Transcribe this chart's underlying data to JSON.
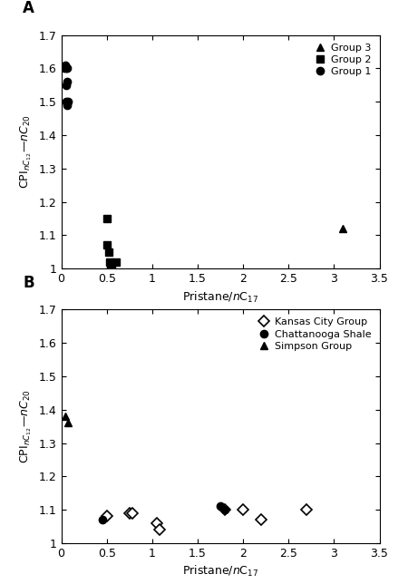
{
  "panel_A": {
    "label": "A",
    "group1": {
      "name": "Group 1",
      "marker": "o",
      "x": [
        0.03,
        0.04,
        0.05,
        0.06,
        0.05,
        0.06,
        0.07,
        0.05,
        0.06
      ],
      "y": [
        1.6,
        1.61,
        1.6,
        1.6,
        1.55,
        1.56,
        1.5,
        1.5,
        1.49
      ]
    },
    "group2": {
      "name": "Group 2",
      "marker": "s",
      "x": [
        0.5,
        0.5,
        0.52,
        0.53,
        0.54,
        0.55,
        0.6
      ],
      "y": [
        1.15,
        1.07,
        1.05,
        1.02,
        1.0,
        1.01,
        1.02
      ]
    },
    "group3": {
      "name": "Group 3",
      "marker": "^",
      "x": [
        3.1
      ],
      "y": [
        1.12
      ]
    },
    "xlim": [
      0,
      3.5
    ],
    "ylim": [
      1.0,
      1.7
    ],
    "xticks": [
      0,
      0.5,
      1.0,
      1.5,
      2.0,
      2.5,
      3.0,
      3.5
    ],
    "yticks": [
      1.0,
      1.1,
      1.2,
      1.3,
      1.4,
      1.5,
      1.6,
      1.7
    ],
    "xlabel": "Pristane/$n$C$_{17}$",
    "ylabel": "CPI$_{nC_{12}}$—$_{nC_{20}}$"
  },
  "panel_B": {
    "label": "B",
    "kansas": {
      "name": "Kansas City Group",
      "marker": "D",
      "x": [
        0.5,
        0.75,
        0.78,
        1.05,
        1.08,
        1.8,
        2.0,
        2.2,
        2.7
      ],
      "y": [
        1.08,
        1.09,
        1.09,
        1.06,
        1.04,
        1.1,
        1.1,
        1.07,
        1.1
      ]
    },
    "chattanooga": {
      "name": "Chattanooga Shale",
      "marker": "o",
      "x": [
        0.45,
        1.75,
        1.8
      ],
      "y": [
        1.07,
        1.11,
        1.1
      ]
    },
    "simpson": {
      "name": "Simpson Group",
      "marker": "^",
      "x": [
        0.04,
        0.07
      ],
      "y": [
        1.38,
        1.36
      ]
    },
    "xlim": [
      0,
      3.5
    ],
    "ylim": [
      1.0,
      1.7
    ],
    "xticks": [
      0,
      0.5,
      1.0,
      1.5,
      2.0,
      2.5,
      3.0,
      3.5
    ],
    "yticks": [
      1.0,
      1.1,
      1.2,
      1.3,
      1.4,
      1.5,
      1.6,
      1.7
    ],
    "xlabel": "Pristane/$n$C$_{17}$",
    "ylabel": "CPI$_{nC_{12}}$—$_{nC_{20}}$"
  },
  "color": "black",
  "markersize": 6,
  "fontsize": 9,
  "label_fontsize": 12
}
